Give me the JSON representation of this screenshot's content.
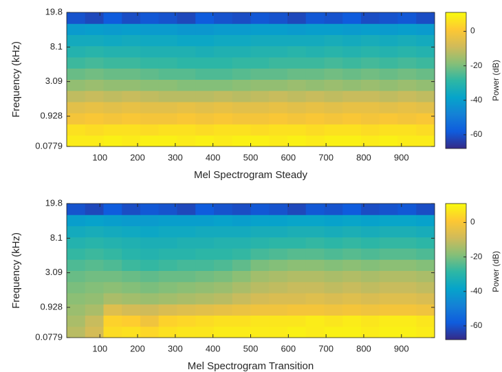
{
  "chart_data": [
    {
      "type": "heatmap",
      "xlabel": "Mel Spectrogram Steady",
      "ylabel": "Frequency (kHz)",
      "colorbar_label": "Power (dB)",
      "xlim": [
        12,
        988
      ],
      "xticks": [
        100,
        200,
        300,
        400,
        500,
        600,
        700,
        800,
        900
      ],
      "ylim": [
        0.0779,
        19.8
      ],
      "yticks": [
        0.0779,
        0.928,
        3.09,
        8.1,
        19.8
      ],
      "yscale": "mel",
      "clim": [
        -68,
        11
      ],
      "cticks": [
        0,
        -20,
        -40,
        -60
      ],
      "colormap": [
        "#352a87",
        "#0f5cdd",
        "#1481d6",
        "#06a4ca",
        "#2eb7a4",
        "#87bf77",
        "#d1bb59",
        "#fec832",
        "#f9fb0e"
      ],
      "values": [
        [
          8,
          8,
          9,
          8,
          9,
          9,
          8,
          9,
          8,
          9,
          9,
          8,
          9,
          8,
          9,
          9,
          8,
          9,
          8,
          8
        ],
        [
          6,
          5,
          6,
          6,
          5,
          6,
          6,
          5,
          6,
          6,
          5,
          6,
          6,
          5,
          6,
          6,
          5,
          6,
          6,
          5
        ],
        [
          -1,
          0,
          -1,
          0,
          -1,
          -1,
          0,
          -1,
          0,
          -1,
          -1,
          0,
          -1,
          0,
          -1,
          0,
          -1,
          0,
          -1,
          0
        ],
        [
          -5,
          -4,
          -5,
          -4,
          -5,
          -5,
          -4,
          -5,
          -4,
          -5,
          -5,
          -4,
          -5,
          -4,
          -5,
          -4,
          -4,
          -5,
          -4,
          -5
        ],
        [
          -11,
          -10,
          -11,
          -10,
          -11,
          -12,
          -12,
          -12,
          -11,
          -12,
          -11,
          -10,
          -11,
          -10,
          -11,
          -10,
          -10,
          -11,
          -10,
          -11
        ],
        [
          -17,
          -16,
          -17,
          -17,
          -18,
          -18,
          -19,
          -19,
          -19,
          -18,
          -17,
          -17,
          -16,
          -17,
          -16,
          -17,
          -16,
          -17,
          -16,
          -17
        ],
        [
          -22,
          -21,
          -22,
          -22,
          -23,
          -24,
          -24,
          -25,
          -25,
          -24,
          -23,
          -23,
          -22,
          -22,
          -21,
          -22,
          -21,
          -22,
          -21,
          -22
        ],
        [
          -27,
          -26,
          -27,
          -27,
          -28,
          -28,
          -29,
          -29,
          -29,
          -28,
          -28,
          -27,
          -27,
          -27,
          -26,
          -27,
          -26,
          -27,
          -26,
          -27
        ],
        [
          -31,
          -30,
          -31,
          -31,
          -32,
          -32,
          -32,
          -33,
          -32,
          -32,
          -31,
          -31,
          -30,
          -31,
          -30,
          -31,
          -30,
          -31,
          -30,
          -31
        ],
        [
          -35,
          -35,
          -36,
          -35,
          -36,
          -36,
          -37,
          -37,
          -36,
          -36,
          -35,
          -35,
          -35,
          -35,
          -34,
          -35,
          -34,
          -35,
          -34,
          -35
        ],
        [
          -41,
          -40,
          -41,
          -40,
          -41,
          -41,
          -42,
          -42,
          -41,
          -41,
          -40,
          -40,
          -41,
          -40,
          -40,
          -41,
          -40,
          -41,
          -40,
          -41
        ],
        [
          -60,
          -62,
          -58,
          -61,
          -59,
          -60,
          -62,
          -58,
          -60,
          -61,
          -59,
          -60,
          -62,
          -59,
          -60,
          -58,
          -61,
          -60,
          -59,
          -61
        ]
      ]
    },
    {
      "type": "heatmap",
      "xlabel": "Mel Spectrogram Transition",
      "ylabel": "Frequency (kHz)",
      "colorbar_label": "Power (dB)",
      "xlim": [
        12,
        988
      ],
      "xticks": [
        100,
        200,
        300,
        400,
        500,
        600,
        700,
        800,
        900
      ],
      "ylim": [
        0.0779,
        19.8
      ],
      "yticks": [
        0.0779,
        0.928,
        3.09,
        8.1,
        19.8
      ],
      "yscale": "mel",
      "clim": [
        -68,
        11
      ],
      "cticks": [
        0,
        -20,
        -40,
        -60
      ],
      "colormap": [
        "#352a87",
        "#0f5cdd",
        "#1481d6",
        "#06a4ca",
        "#2eb7a4",
        "#87bf77",
        "#d1bb59",
        "#fec832",
        "#f9fb0e"
      ],
      "values": [
        [
          -12,
          -8,
          5,
          6,
          4,
          6,
          7,
          7,
          8,
          8,
          8,
          8,
          9,
          8,
          9,
          9,
          8,
          9,
          9,
          8
        ],
        [
          -14,
          -10,
          3,
          2,
          -2,
          3,
          4,
          5,
          6,
          6,
          7,
          7,
          7,
          8,
          7,
          8,
          7,
          8,
          8,
          7
        ],
        [
          -16,
          -14,
          -6,
          -8,
          -9,
          -7,
          -6,
          -5,
          -4,
          -3,
          -2,
          -2,
          -1,
          -1,
          -2,
          -1,
          -2,
          -1,
          -1,
          -2
        ],
        [
          -18,
          -17,
          -14,
          -15,
          -16,
          -15,
          -14,
          -13,
          -12,
          -10,
          -8,
          -7,
          -7,
          -6,
          -7,
          -6,
          -7,
          -6,
          -6,
          -7
        ],
        [
          -20,
          -19,
          -18,
          -19,
          -20,
          -19,
          -18,
          -17,
          -16,
          -14,
          -12,
          -11,
          -10,
          -10,
          -11,
          -10,
          -11,
          -10,
          -10,
          -11
        ],
        [
          -22,
          -21,
          -21,
          -22,
          -23,
          -22,
          -22,
          -21,
          -20,
          -18,
          -15,
          -14,
          -13,
          -13,
          -14,
          -13,
          -14,
          -13,
          -13,
          -14
        ],
        [
          -25,
          -24,
          -25,
          -27,
          -28,
          -27,
          -26,
          -26,
          -25,
          -23,
          -20,
          -19,
          -18,
          -18,
          -19,
          -18,
          -19,
          -18,
          -18,
          -19
        ],
        [
          -28,
          -27,
          -28,
          -30,
          -31,
          -30,
          -30,
          -29,
          -29,
          -28,
          -26,
          -25,
          -24,
          -24,
          -25,
          -24,
          -25,
          -24,
          -24,
          -25
        ],
        [
          -31,
          -30,
          -31,
          -32,
          -33,
          -33,
          -32,
          -32,
          -31,
          -31,
          -30,
          -29,
          -29,
          -28,
          -29,
          -28,
          -29,
          -28,
          -28,
          -29
        ],
        [
          -35,
          -34,
          -35,
          -36,
          -37,
          -36,
          -36,
          -35,
          -35,
          -35,
          -34,
          -34,
          -33,
          -33,
          -34,
          -33,
          -34,
          -33,
          -33,
          -34
        ],
        [
          -40,
          -39,
          -40,
          -41,
          -41,
          -40,
          -40,
          -40,
          -39,
          -40,
          -39,
          -39,
          -38,
          -38,
          -39,
          -38,
          -39,
          -38,
          -38,
          -39
        ],
        [
          -60,
          -62,
          -58,
          -61,
          -59,
          -60,
          -62,
          -58,
          -60,
          -61,
          -59,
          -60,
          -62,
          -59,
          -60,
          -58,
          -61,
          -60,
          -59,
          -61
        ]
      ]
    }
  ]
}
